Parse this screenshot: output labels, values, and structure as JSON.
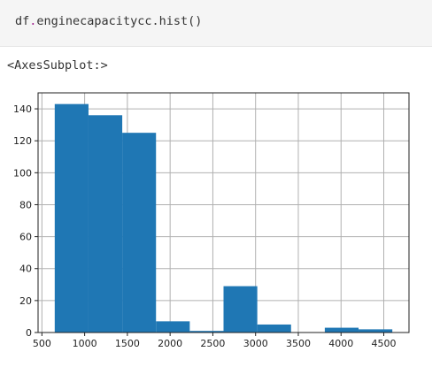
{
  "code_cell": {
    "object": "df",
    "dot": ".",
    "call": "enginecapacitycc.hist",
    "dot2": ".",
    "parens": "()"
  },
  "output": {
    "repr": "<AxesSubplot:>"
  },
  "chart_data": {
    "type": "bar",
    "title": "",
    "xlabel": "",
    "ylabel": "",
    "bins": [
      {
        "x0": 650,
        "x1": 1045,
        "count": 143
      },
      {
        "x0": 1045,
        "x1": 1440,
        "count": 136
      },
      {
        "x0": 1440,
        "x1": 1835,
        "count": 125
      },
      {
        "x0": 1835,
        "x1": 2230,
        "count": 7
      },
      {
        "x0": 2230,
        "x1": 2625,
        "count": 1
      },
      {
        "x0": 2625,
        "x1": 3020,
        "count": 29
      },
      {
        "x0": 3020,
        "x1": 3415,
        "count": 5
      },
      {
        "x0": 3415,
        "x1": 3810,
        "count": 0
      },
      {
        "x0": 3810,
        "x1": 4205,
        "count": 3
      },
      {
        "x0": 4205,
        "x1": 4600,
        "count": 2
      }
    ],
    "xlim": [
      455,
      4795
    ],
    "ylim": [
      0,
      150
    ],
    "x_ticks": [
      500,
      1000,
      1500,
      2000,
      2500,
      3000,
      3500,
      4000,
      4500
    ],
    "y_ticks": [
      0,
      20,
      40,
      60,
      80,
      100,
      120,
      140
    ],
    "grid": true,
    "bar_color": "#1f77b4"
  }
}
